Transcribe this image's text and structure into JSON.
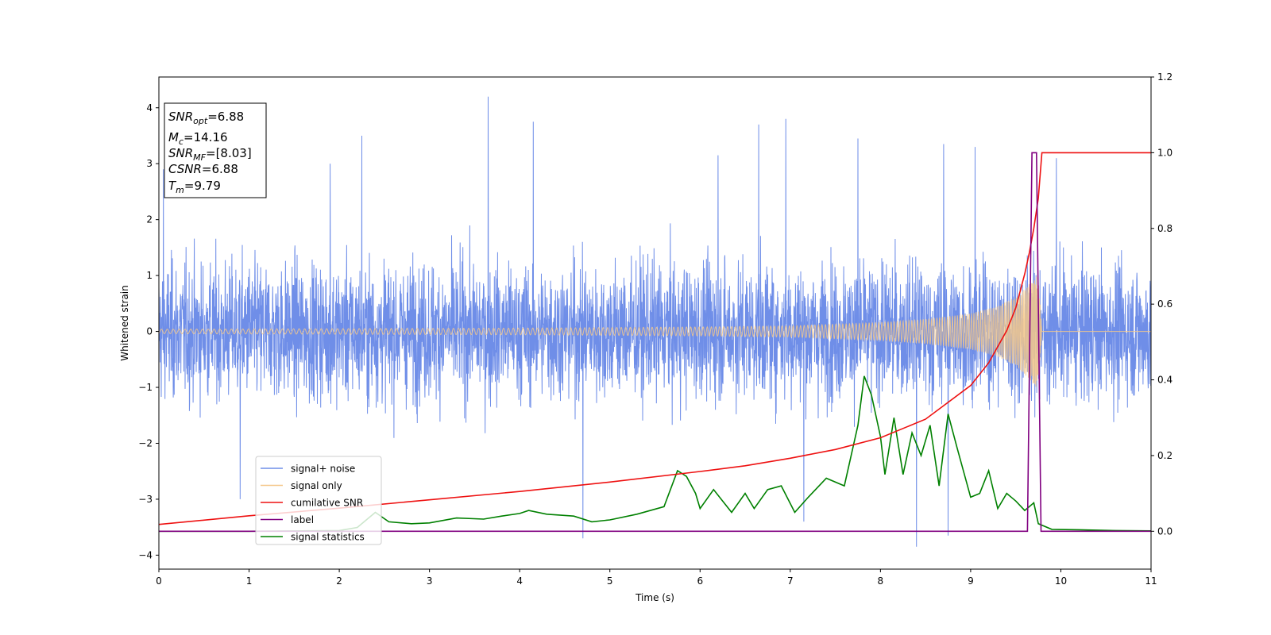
{
  "chart_data": {
    "type": "line",
    "xlabel": "Time (s)",
    "ylabel": "Whitened strain",
    "xlim": [
      0,
      11
    ],
    "ylim": [
      -4.25,
      4.55
    ],
    "y2lim": [
      -0.1,
      1.2
    ],
    "xticks": [
      "0",
      "1",
      "2",
      "3",
      "4",
      "5",
      "6",
      "7",
      "8",
      "9",
      "10",
      "11"
    ],
    "yticks": [
      "−4",
      "−3",
      "−2",
      "−1",
      "0",
      "1",
      "2",
      "3",
      "4"
    ],
    "y2ticks": [
      "0.0",
      "0.2",
      "0.4",
      "0.6",
      "0.8",
      "1.0",
      "1.2"
    ],
    "grid": false,
    "legend_position": "lower-left",
    "info_box": {
      "snr_opt": {
        "sym": "SNR",
        "sub": "opt",
        "val": "=6.88"
      },
      "mc": {
        "sym": "M",
        "sub": "c",
        "val": "=14.16"
      },
      "snr_mf": {
        "sym": "SNR",
        "sub": "MF",
        "val": "=[8.03]"
      },
      "csnr": {
        "sym": "CSNR",
        "sub": "",
        "val": "=6.88"
      },
      "tm": {
        "sym": "T",
        "sub": "m",
        "val": "=9.79"
      }
    },
    "series": [
      {
        "name": "signal+ noise",
        "color": "#6f8ee8",
        "axis": "left",
        "amplitude_estimate": 1.6,
        "peaks": [
          [
            0.05,
            2.9
          ],
          [
            0.9,
            -3.0
          ],
          [
            1.9,
            3.0
          ],
          [
            2.25,
            3.5
          ],
          [
            3.65,
            4.2
          ],
          [
            4.15,
            3.75
          ],
          [
            4.7,
            -3.7
          ],
          [
            6.2,
            3.15
          ],
          [
            6.65,
            3.7
          ],
          [
            6.95,
            3.8
          ],
          [
            7.15,
            -3.4
          ],
          [
            7.75,
            3.45
          ],
          [
            8.4,
            -3.85
          ],
          [
            8.7,
            3.35
          ],
          [
            9.05,
            3.3
          ],
          [
            8.75,
            -3.65
          ],
          [
            9.95,
            3.1
          ]
        ]
      },
      {
        "name": "signal only",
        "color": "#f5c88a",
        "axis": "left",
        "chirp_merger_time": 9.79,
        "envelope": [
          [
            0,
            0.04
          ],
          [
            2,
            0.05
          ],
          [
            4,
            0.06
          ],
          [
            6,
            0.08
          ],
          [
            7,
            0.1
          ],
          [
            8,
            0.16
          ],
          [
            8.5,
            0.22
          ],
          [
            9,
            0.32
          ],
          [
            9.3,
            0.45
          ],
          [
            9.5,
            0.62
          ],
          [
            9.65,
            0.85
          ],
          [
            9.75,
            1.05
          ],
          [
            9.79,
            0.0
          ]
        ]
      },
      {
        "name": "cumilative SNR",
        "color": "#ee1111",
        "axis": "right",
        "x": [
          0,
          1,
          2,
          3,
          4,
          5,
          6,
          6.5,
          7,
          7.5,
          8,
          8.5,
          9,
          9.2,
          9.4,
          9.5,
          9.6,
          9.65,
          9.7,
          9.75,
          9.79,
          11
        ],
        "y": [
          0.018,
          0.041,
          0.061,
          0.083,
          0.105,
          0.13,
          0.158,
          0.173,
          0.193,
          0.216,
          0.247,
          0.296,
          0.385,
          0.445,
          0.53,
          0.59,
          0.68,
          0.735,
          0.8,
          0.88,
          1.0,
          1.0
        ]
      },
      {
        "name": "label",
        "color": "#800080",
        "axis": "right",
        "x": [
          0,
          9.63,
          9.68,
          9.73,
          9.78,
          11
        ],
        "y": [
          0,
          0,
          1,
          1,
          0,
          0
        ]
      },
      {
        "name": "signal statistics",
        "color": "#008000",
        "axis": "right",
        "x": [
          0,
          1,
          2,
          2.2,
          2.4,
          2.55,
          2.8,
          3,
          3.3,
          3.6,
          3.8,
          4,
          4.1,
          4.3,
          4.6,
          4.8,
          5,
          5.3,
          5.6,
          5.75,
          5.85,
          5.95,
          6,
          6.15,
          6.25,
          6.35,
          6.5,
          6.6,
          6.75,
          6.9,
          7.05,
          7.2,
          7.4,
          7.6,
          7.75,
          7.82,
          7.9,
          8,
          8.05,
          8.15,
          8.25,
          8.35,
          8.45,
          8.55,
          8.65,
          8.75,
          8.85,
          9,
          9.1,
          9.2,
          9.3,
          9.4,
          9.5,
          9.6,
          9.7,
          9.75,
          9.9,
          10.2,
          10.6,
          11
        ],
        "y": [
          0,
          0,
          0.002,
          0.01,
          0.05,
          0.025,
          0.02,
          0.022,
          0.035,
          0.032,
          0.04,
          0.047,
          0.055,
          0.045,
          0.04,
          0.025,
          0.03,
          0.045,
          0.065,
          0.16,
          0.145,
          0.1,
          0.06,
          0.11,
          0.08,
          0.05,
          0.1,
          0.06,
          0.11,
          0.12,
          0.05,
          0.09,
          0.14,
          0.12,
          0.28,
          0.41,
          0.36,
          0.25,
          0.15,
          0.3,
          0.15,
          0.26,
          0.2,
          0.28,
          0.12,
          0.31,
          0.22,
          0.09,
          0.1,
          0.16,
          0.06,
          0.1,
          0.08,
          0.055,
          0.075,
          0.02,
          0.005,
          0.004,
          0.002,
          0.001
        ]
      }
    ]
  }
}
